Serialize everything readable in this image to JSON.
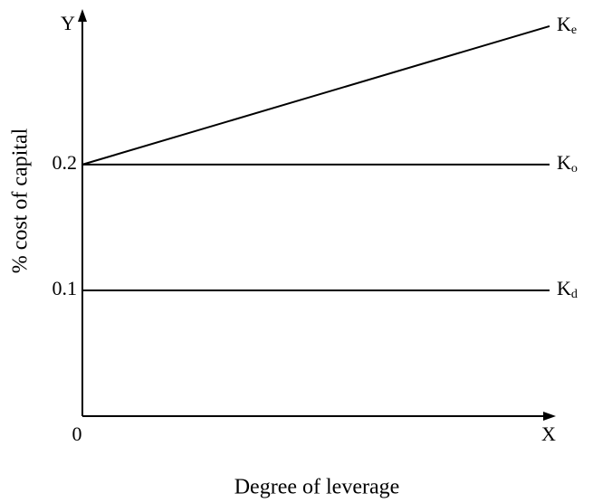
{
  "chart_data": {
    "type": "line",
    "x_label": "Degree of leverage",
    "y_label": "% cost of capital",
    "x_axis_letter": "X",
    "y_axis_letter": "Y",
    "x": [
      0,
      1
    ],
    "xlim": [
      0,
      1
    ],
    "ylim": [
      0,
      0.32
    ],
    "yticks": [
      0,
      0.1,
      0.2
    ],
    "grid": false,
    "series": [
      {
        "name": "Ke",
        "color": "#000000",
        "values": [
          0.2,
          0.31
        ]
      },
      {
        "name": "Ko",
        "color": "#000000",
        "values": [
          0.2,
          0.2
        ]
      },
      {
        "name": "Kd",
        "color": "#000000",
        "values": [
          0.1,
          0.1
        ]
      }
    ]
  }
}
